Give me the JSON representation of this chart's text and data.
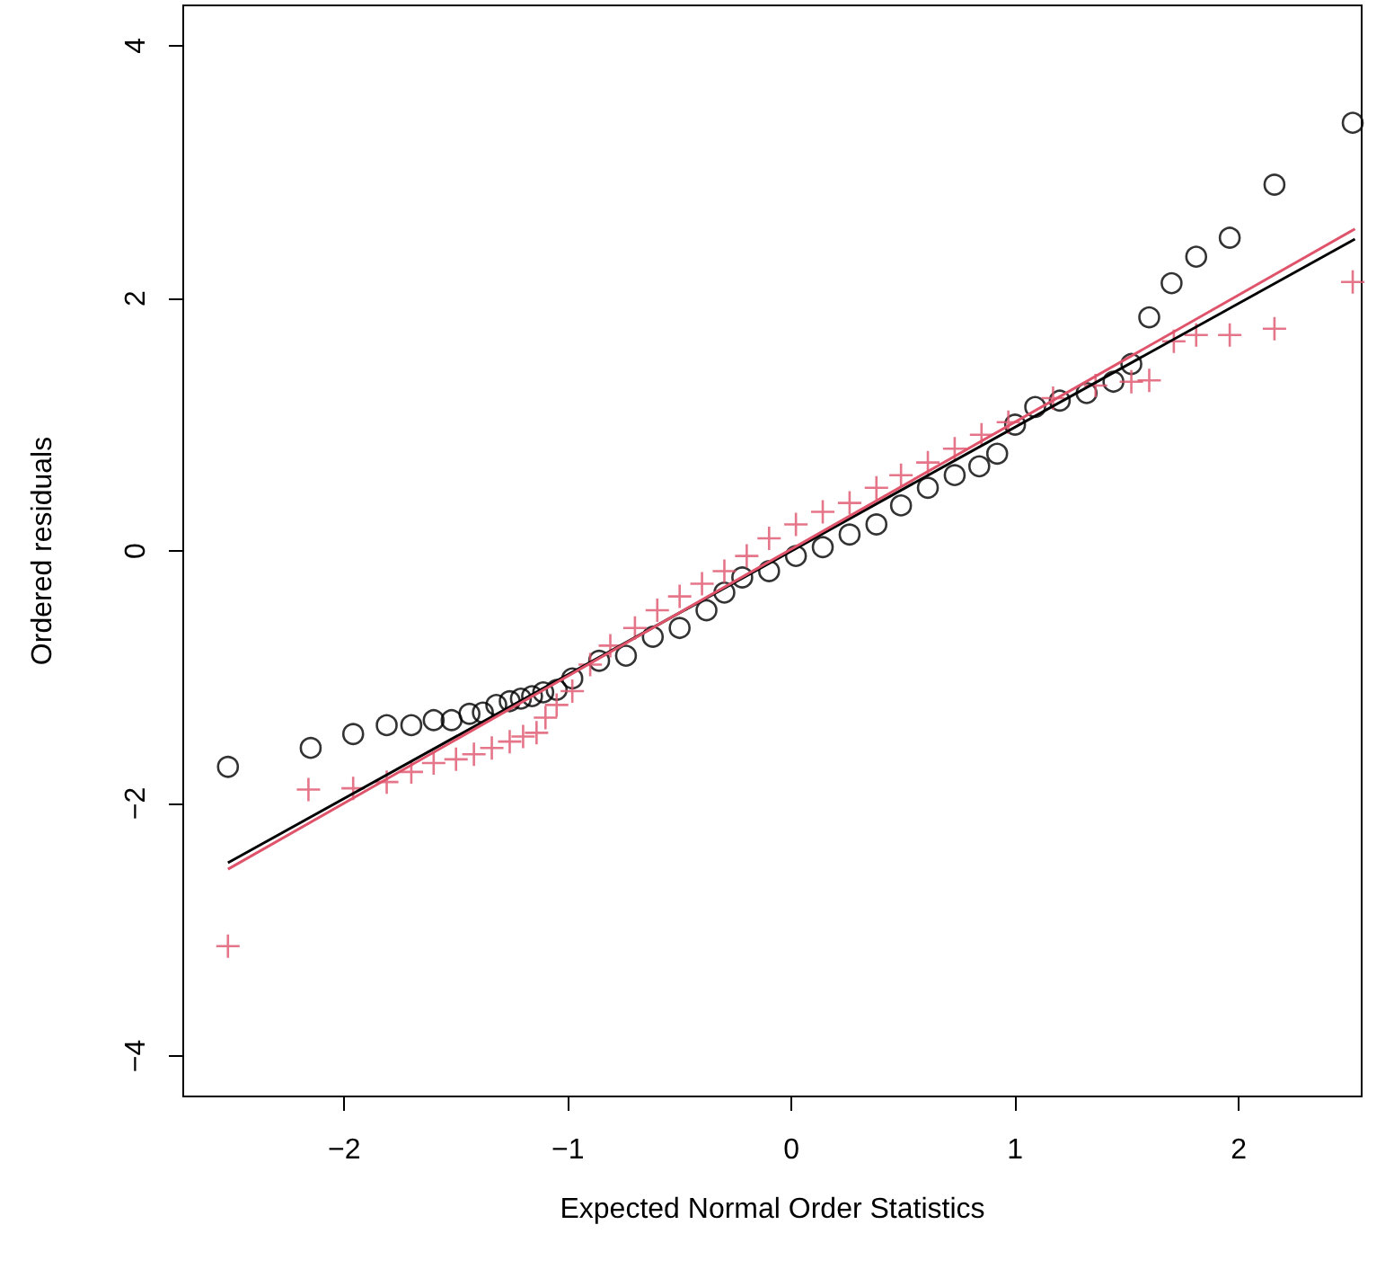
{
  "chart_data": {
    "type": "scatter",
    "xlabel": "Expected Normal Order Statistics",
    "ylabel": "Ordered residuals",
    "xlim": [
      -2.72,
      2.55
    ],
    "ylim": [
      -4.32,
      4.32
    ],
    "xticks": [
      {
        "value": -2,
        "label": "−2"
      },
      {
        "value": -1,
        "label": "−1"
      },
      0,
      1,
      2
    ],
    "yticks": [
      {
        "value": -4,
        "label": "−4"
      },
      {
        "value": -2,
        "label": "−2"
      },
      0,
      2,
      4
    ],
    "series": [
      {
        "marker": "circle",
        "color": "#000000",
        "x": [
          -2.52,
          -2.15,
          -1.96,
          -1.81,
          -1.7,
          -1.6,
          -1.52,
          -1.44,
          -1.38,
          -1.32,
          -1.26,
          -1.21,
          -1.16,
          -1.11,
          -1.05,
          -0.98,
          -0.86,
          -0.74,
          -0.62,
          -0.5,
          -0.38,
          -0.3,
          -0.22,
          -0.1,
          0.02,
          0.14,
          0.26,
          0.38,
          0.49,
          0.61,
          0.73,
          0.84,
          0.92,
          1.0,
          1.09,
          1.2,
          1.32,
          1.44,
          1.52,
          1.6,
          1.7,
          1.81,
          1.96,
          2.16,
          2.51
        ],
        "values": [
          -1.71,
          -1.56,
          -1.45,
          -1.38,
          -1.38,
          -1.34,
          -1.34,
          -1.29,
          -1.28,
          -1.22,
          -1.19,
          -1.17,
          -1.15,
          -1.12,
          -1.1,
          -1.01,
          -0.87,
          -0.83,
          -0.68,
          -0.61,
          -0.47,
          -0.33,
          -0.21,
          -0.16,
          -0.04,
          0.03,
          0.13,
          0.21,
          0.36,
          0.5,
          0.6,
          0.67,
          0.77,
          1.0,
          1.14,
          1.19,
          1.25,
          1.34,
          1.48,
          1.85,
          2.12,
          2.33,
          2.48,
          2.9,
          3.39
        ]
      },
      {
        "marker": "cross",
        "color": "#df536b",
        "x": [
          -2.52,
          -2.16,
          -1.96,
          -1.81,
          -1.7,
          -1.6,
          -1.5,
          -1.42,
          -1.34,
          -1.26,
          -1.2,
          -1.14,
          -1.1,
          -1.05,
          -0.98,
          -0.9,
          -0.81,
          -0.7,
          -0.6,
          -0.5,
          -0.4,
          -0.3,
          -0.2,
          -0.1,
          0.02,
          0.14,
          0.26,
          0.38,
          0.49,
          0.61,
          0.73,
          0.85,
          0.97,
          1.17,
          1.36,
          1.52,
          1.6,
          1.71,
          1.81,
          1.96,
          2.16,
          2.51
        ],
        "values": [
          -3.13,
          -1.89,
          -1.88,
          -1.83,
          -1.75,
          -1.68,
          -1.65,
          -1.61,
          -1.56,
          -1.51,
          -1.47,
          -1.44,
          -1.32,
          -1.22,
          -1.11,
          -0.9,
          -0.75,
          -0.61,
          -0.47,
          -0.36,
          -0.26,
          -0.16,
          -0.04,
          0.1,
          0.21,
          0.31,
          0.38,
          0.5,
          0.6,
          0.7,
          0.81,
          0.92,
          1.02,
          1.21,
          1.31,
          1.34,
          1.35,
          1.66,
          1.71,
          1.71,
          1.76,
          2.13
        ]
      },
      {
        "type": "line",
        "marker": "none",
        "color": "#000000",
        "x": [
          -2.52,
          2.52
        ],
        "values": [
          -2.47,
          2.47
        ]
      },
      {
        "type": "line",
        "marker": "none",
        "color": "#df536b",
        "x": [
          -2.52,
          2.52
        ],
        "values": [
          -2.52,
          2.55
        ]
      }
    ]
  }
}
